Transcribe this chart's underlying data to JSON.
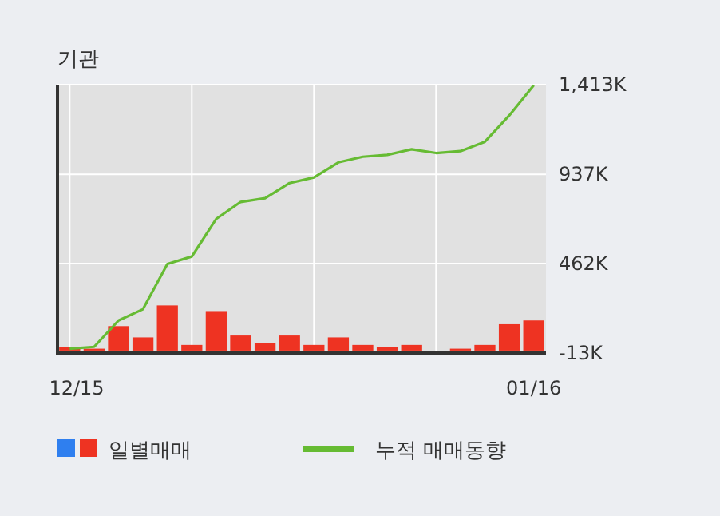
{
  "chart_data": {
    "type": "bar",
    "title": "기관",
    "categories": [
      "12/15",
      null,
      null,
      null,
      null,
      null,
      null,
      null,
      null,
      null,
      null,
      null,
      null,
      null,
      null,
      null,
      null,
      null,
      null,
      "01/16"
    ],
    "series": [
      {
        "name": "일별매매",
        "colors": [
          "#ee3322",
          "#ee3322",
          "#ee3322",
          "#ee3322",
          "#ee3322",
          "#ee3322",
          "#ee3322",
          "#ee3322",
          "#ee3322",
          "#ee3322",
          "#ee3322",
          "#ee3322",
          "#ee3322",
          "#ee3322",
          "#ee3322",
          "#2f7fef",
          "#ee3322",
          "#ee3322",
          "#ee3322",
          "#ee3322"
        ],
        "values": [
          20,
          10,
          130,
          70,
          240,
          30,
          210,
          80,
          40,
          80,
          30,
          70,
          30,
          20,
          30,
          null,
          10,
          30,
          140,
          160
        ]
      },
      {
        "name": "누적 매매동향",
        "type": "line",
        "color": "#66bb33",
        "values": [
          10,
          20,
          160,
          220,
          460,
          500,
          700,
          790,
          810,
          890,
          920,
          1000,
          1030,
          1040,
          1070,
          1050,
          1060,
          1110,
          1250,
          1410
        ]
      }
    ],
    "ylim": [
      -13,
      1413
    ],
    "yticks": [
      {
        "value": -13,
        "label": "-13K"
      },
      {
        "value": 462,
        "label": "462K"
      },
      {
        "value": 937,
        "label": "937K"
      },
      {
        "value": 1413,
        "label": "1,413K"
      }
    ],
    "grid": true,
    "legend": "bottom"
  }
}
